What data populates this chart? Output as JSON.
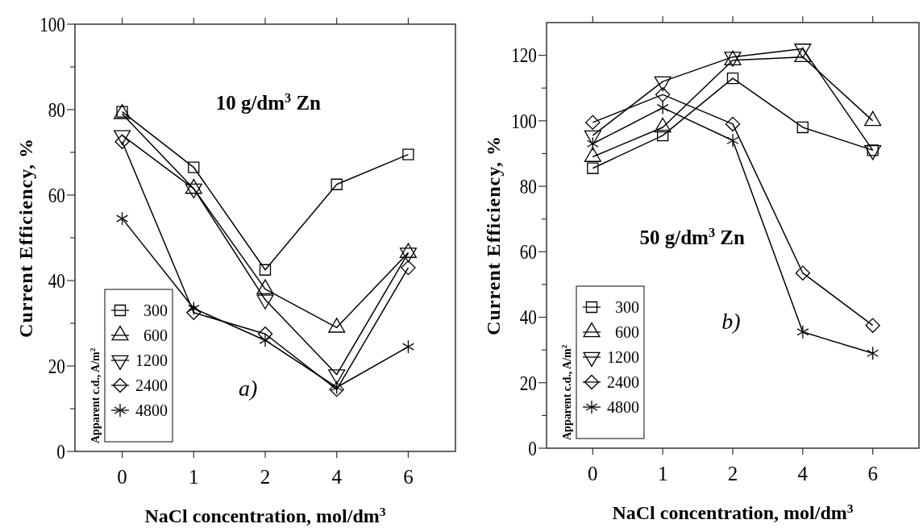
{
  "chart_data": [
    {
      "type": "line",
      "xlabel": "NaCl concentration, mol/dm$^{3}$",
      "ylabel": "Current Efficiency, %",
      "legend_title": "Apparent c.d., A/m$^{2}$",
      "legend": "bottom left",
      "line_style": "solid",
      "annotations": [
        "10 g/dm$^{3}$ Zn",
        "a)"
      ],
      "categories": [
        "0",
        "1",
        "2",
        "4",
        "6"
      ],
      "ylim": [
        0,
        100
      ],
      "yticks": [
        0,
        {
          "value": 10,
          "label": null
        },
        20,
        {
          "value": 30,
          "label": null
        },
        40,
        {
          "value": 50,
          "label": null
        },
        60,
        {
          "value": 70,
          "label": null
        },
        80,
        {
          "value": 90,
          "label": null
        },
        100
      ],
      "series": [
        {
          "name": "300",
          "color": "#000000",
          "marker": "square",
          "values": [
            79.5,
            66.5,
            42.5,
            62.5,
            69.5
          ]
        },
        {
          "name": "600",
          "color": "#000000",
          "marker": "triangle",
          "values": [
            79,
            61.5,
            38,
            29,
            46.5
          ]
        },
        {
          "name": "1200",
          "color": "#000000",
          "marker": "triangle-down",
          "values": [
            74,
            61.5,
            35.5,
            18,
            46.5
          ]
        },
        {
          "name": "2400",
          "color": "#000000",
          "marker": "diamond",
          "values": [
            72.5,
            32.5,
            27.5,
            14.5,
            43
          ]
        },
        {
          "name": "4800",
          "color": "#000000",
          "marker": "cross",
          "values": [
            54.5,
            33.5,
            26,
            15,
            24.5
          ]
        }
      ]
    },
    {
      "type": "line",
      "xlabel": "NaCl concentration, mol/dm$^{3}$",
      "ylabel": "Current Efficiency, %",
      "legend_title": "Apparent c.d., A/m$^{2}$",
      "legend": "bottom left",
      "line_style": "solid",
      "annotations": [
        "50 g/dm$^{3}$ Zn",
        "b)"
      ],
      "categories": [
        "0",
        "1",
        "2",
        "4",
        "6"
      ],
      "ylim": [
        0,
        130
      ],
      "yticks": [
        0,
        {
          "value": 10,
          "label": null
        },
        20,
        {
          "value": 30,
          "label": null
        },
        40,
        {
          "value": 50,
          "label": null
        },
        60,
        {
          "value": 70,
          "label": null
        },
        80,
        {
          "value": 90,
          "label": null
        },
        100,
        {
          "value": 110,
          "label": null
        },
        120
      ],
      "series": [
        {
          "name": "300",
          "color": "#000000",
          "marker": "square",
          "values": [
            85.5,
            95.5,
            113,
            98,
            91
          ]
        },
        {
          "name": "600",
          "color": "#000000",
          "marker": "triangle",
          "values": [
            89,
            98,
            118.5,
            119.5,
            100
          ]
        },
        {
          "name": "1200",
          "color": "#000000",
          "marker": "triangle-down",
          "values": [
            95.5,
            112,
            119.5,
            122,
            91
          ]
        },
        {
          "name": "2400",
          "color": "#000000",
          "marker": "diamond",
          "values": [
            99.5,
            108,
            99,
            53.5,
            37.5
          ]
        },
        {
          "name": "4800",
          "color": "#000000",
          "marker": "cross",
          "values": [
            93,
            104,
            94,
            35.5,
            29
          ]
        }
      ]
    }
  ]
}
